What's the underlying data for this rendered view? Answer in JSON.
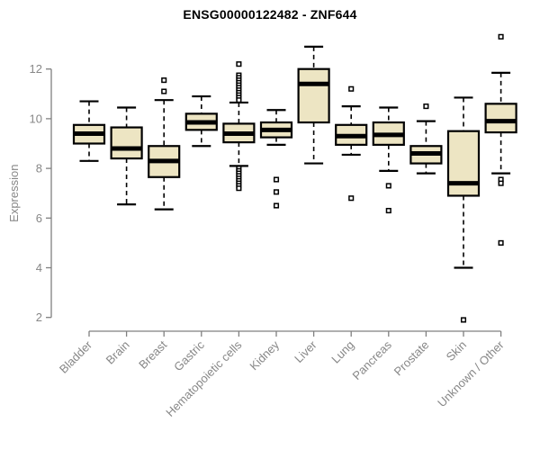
{
  "chart_data": {
    "type": "boxplot",
    "title": "ENSG00000122482 - ZNF644",
    "ylabel": "Expression",
    "xlabel": "",
    "ylim": [
      2,
      13.3
    ],
    "yticks": [
      2,
      4,
      6,
      8,
      10,
      12
    ],
    "grid": false,
    "legend": "none",
    "categories": [
      "Bladder",
      "Brain",
      "Breast",
      "Gastric",
      "Hematopoietic cells",
      "Kidney",
      "Liver",
      "Lung",
      "Pancreas",
      "Prostate",
      "Skin",
      "Unknown / Other"
    ],
    "boxes": [
      {
        "category": "Bladder",
        "whisker_low": 8.3,
        "q1": 9.0,
        "median": 9.4,
        "q3": 9.75,
        "whisker_high": 10.7,
        "outliers": []
      },
      {
        "category": "Brain",
        "whisker_low": 6.55,
        "q1": 8.4,
        "median": 8.8,
        "q3": 9.65,
        "whisker_high": 10.45,
        "outliers": []
      },
      {
        "category": "Breast",
        "whisker_low": 6.35,
        "q1": 7.65,
        "median": 8.3,
        "q3": 8.9,
        "whisker_high": 10.75,
        "outliers": [
          11.1,
          11.55
        ]
      },
      {
        "category": "Gastric",
        "whisker_low": 8.9,
        "q1": 9.55,
        "median": 9.85,
        "q3": 10.2,
        "whisker_high": 10.9,
        "outliers": []
      },
      {
        "category": "Hematopoietic cells",
        "whisker_low": 8.1,
        "q1": 9.05,
        "median": 9.4,
        "q3": 9.8,
        "whisker_high": 10.65,
        "outliers": [
          12.2,
          11.75,
          11.65,
          11.55,
          11.45,
          11.35,
          11.25,
          11.15,
          11.05,
          10.95,
          10.85,
          10.75,
          8.0,
          7.9,
          7.8,
          7.7,
          7.6,
          7.5,
          7.4,
          7.3,
          7.2
        ]
      },
      {
        "category": "Kidney",
        "whisker_low": 8.95,
        "q1": 9.25,
        "median": 9.55,
        "q3": 9.85,
        "whisker_high": 10.35,
        "outliers": [
          7.55,
          7.05,
          6.5
        ]
      },
      {
        "category": "Liver",
        "whisker_low": 8.2,
        "q1": 9.85,
        "median": 11.4,
        "q3": 12.0,
        "whisker_high": 12.9,
        "outliers": []
      },
      {
        "category": "Lung",
        "whisker_low": 8.55,
        "q1": 8.95,
        "median": 9.3,
        "q3": 9.75,
        "whisker_high": 10.5,
        "outliers": [
          11.2,
          6.8
        ]
      },
      {
        "category": "Pancreas",
        "whisker_low": 7.9,
        "q1": 8.95,
        "median": 9.35,
        "q3": 9.85,
        "whisker_high": 10.45,
        "outliers": [
          7.3,
          6.3
        ]
      },
      {
        "category": "Prostate",
        "whisker_low": 7.8,
        "q1": 8.2,
        "median": 8.6,
        "q3": 8.9,
        "whisker_high": 9.9,
        "outliers": [
          10.5
        ]
      },
      {
        "category": "Skin",
        "whisker_low": 4.0,
        "q1": 6.9,
        "median": 7.4,
        "q3": 9.5,
        "whisker_high": 10.85,
        "outliers": [
          1.9
        ]
      },
      {
        "category": "Unknown / Other",
        "whisker_low": 7.8,
        "q1": 9.45,
        "median": 9.9,
        "q3": 10.6,
        "whisker_high": 11.85,
        "outliers": [
          13.3,
          7.55,
          7.4,
          5.0
        ]
      }
    ],
    "colors": {
      "box_fill": "#EDE5C3",
      "box_stroke": "#000000",
      "median": "#000000",
      "whisker": "#000000",
      "outlier_fill": "#FFFFFF",
      "axis": "#808080",
      "tick_label": "#878787",
      "title": "#000000",
      "background": "#FFFFFF"
    }
  }
}
